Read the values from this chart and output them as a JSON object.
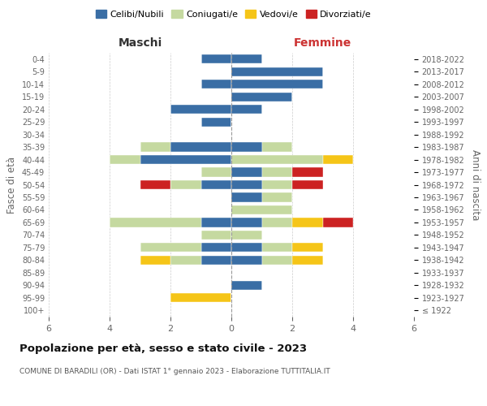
{
  "age_groups": [
    "100+",
    "95-99",
    "90-94",
    "85-89",
    "80-84",
    "75-79",
    "70-74",
    "65-69",
    "60-64",
    "55-59",
    "50-54",
    "45-49",
    "40-44",
    "35-39",
    "30-34",
    "25-29",
    "20-24",
    "15-19",
    "10-14",
    "5-9",
    "0-4"
  ],
  "birth_years": [
    "≤ 1922",
    "1923-1927",
    "1928-1932",
    "1933-1937",
    "1938-1942",
    "1943-1947",
    "1948-1952",
    "1953-1957",
    "1958-1962",
    "1963-1967",
    "1968-1972",
    "1973-1977",
    "1978-1982",
    "1983-1987",
    "1988-1992",
    "1993-1997",
    "1998-2002",
    "2003-2007",
    "2008-2012",
    "2013-2017",
    "2018-2022"
  ],
  "colors": {
    "celibi": "#3a6ea5",
    "coniugati": "#c5d9a0",
    "vedovi": "#f5c518",
    "divorziati": "#cc2222"
  },
  "maschi": {
    "celibi": [
      0,
      0,
      0,
      0,
      1,
      1,
      0,
      1,
      0,
      0,
      1,
      0,
      3,
      2,
      0,
      1,
      2,
      0,
      1,
      0,
      1
    ],
    "coniugati": [
      0,
      0,
      0,
      0,
      1,
      2,
      1,
      3,
      0,
      0,
      1,
      1,
      1,
      1,
      0,
      0,
      0,
      0,
      0,
      0,
      0
    ],
    "vedovi": [
      0,
      2,
      0,
      0,
      1,
      0,
      0,
      0,
      0,
      0,
      0,
      0,
      0,
      0,
      0,
      0,
      0,
      0,
      0,
      0,
      0
    ],
    "divorziati": [
      0,
      0,
      0,
      0,
      0,
      0,
      0,
      0,
      0,
      0,
      1,
      0,
      0,
      0,
      0,
      0,
      0,
      0,
      0,
      0,
      0
    ]
  },
  "femmine": {
    "celibi": [
      0,
      0,
      1,
      0,
      1,
      1,
      0,
      1,
      0,
      1,
      1,
      1,
      0,
      1,
      0,
      0,
      1,
      2,
      3,
      3,
      1
    ],
    "coniugati": [
      0,
      0,
      0,
      0,
      1,
      1,
      1,
      1,
      2,
      1,
      1,
      1,
      3,
      1,
      0,
      0,
      0,
      0,
      0,
      0,
      0
    ],
    "vedovi": [
      0,
      0,
      0,
      0,
      1,
      1,
      0,
      1,
      0,
      0,
      0,
      0,
      1,
      0,
      0,
      0,
      0,
      0,
      0,
      0,
      0
    ],
    "divorziati": [
      0,
      0,
      0,
      0,
      0,
      0,
      0,
      1,
      0,
      0,
      1,
      1,
      0,
      0,
      0,
      0,
      0,
      0,
      0,
      0,
      0
    ]
  },
  "title": "Popolazione per età, sesso e stato civile - 2023",
  "subtitle": "COMUNE DI BARADILI (OR) - Dati ISTAT 1° gennaio 2023 - Elaborazione TUTTITALIA.IT",
  "xlabel_left": "Maschi",
  "xlabel_right": "Femmine",
  "ylabel_left": "Fasce di età",
  "ylabel_right": "Anni di nascita",
  "xlim": 6,
  "legend_labels": [
    "Celibi/Nubili",
    "Coniugati/e",
    "Vedovi/e",
    "Divorziati/e"
  ],
  "background_color": "#ffffff"
}
